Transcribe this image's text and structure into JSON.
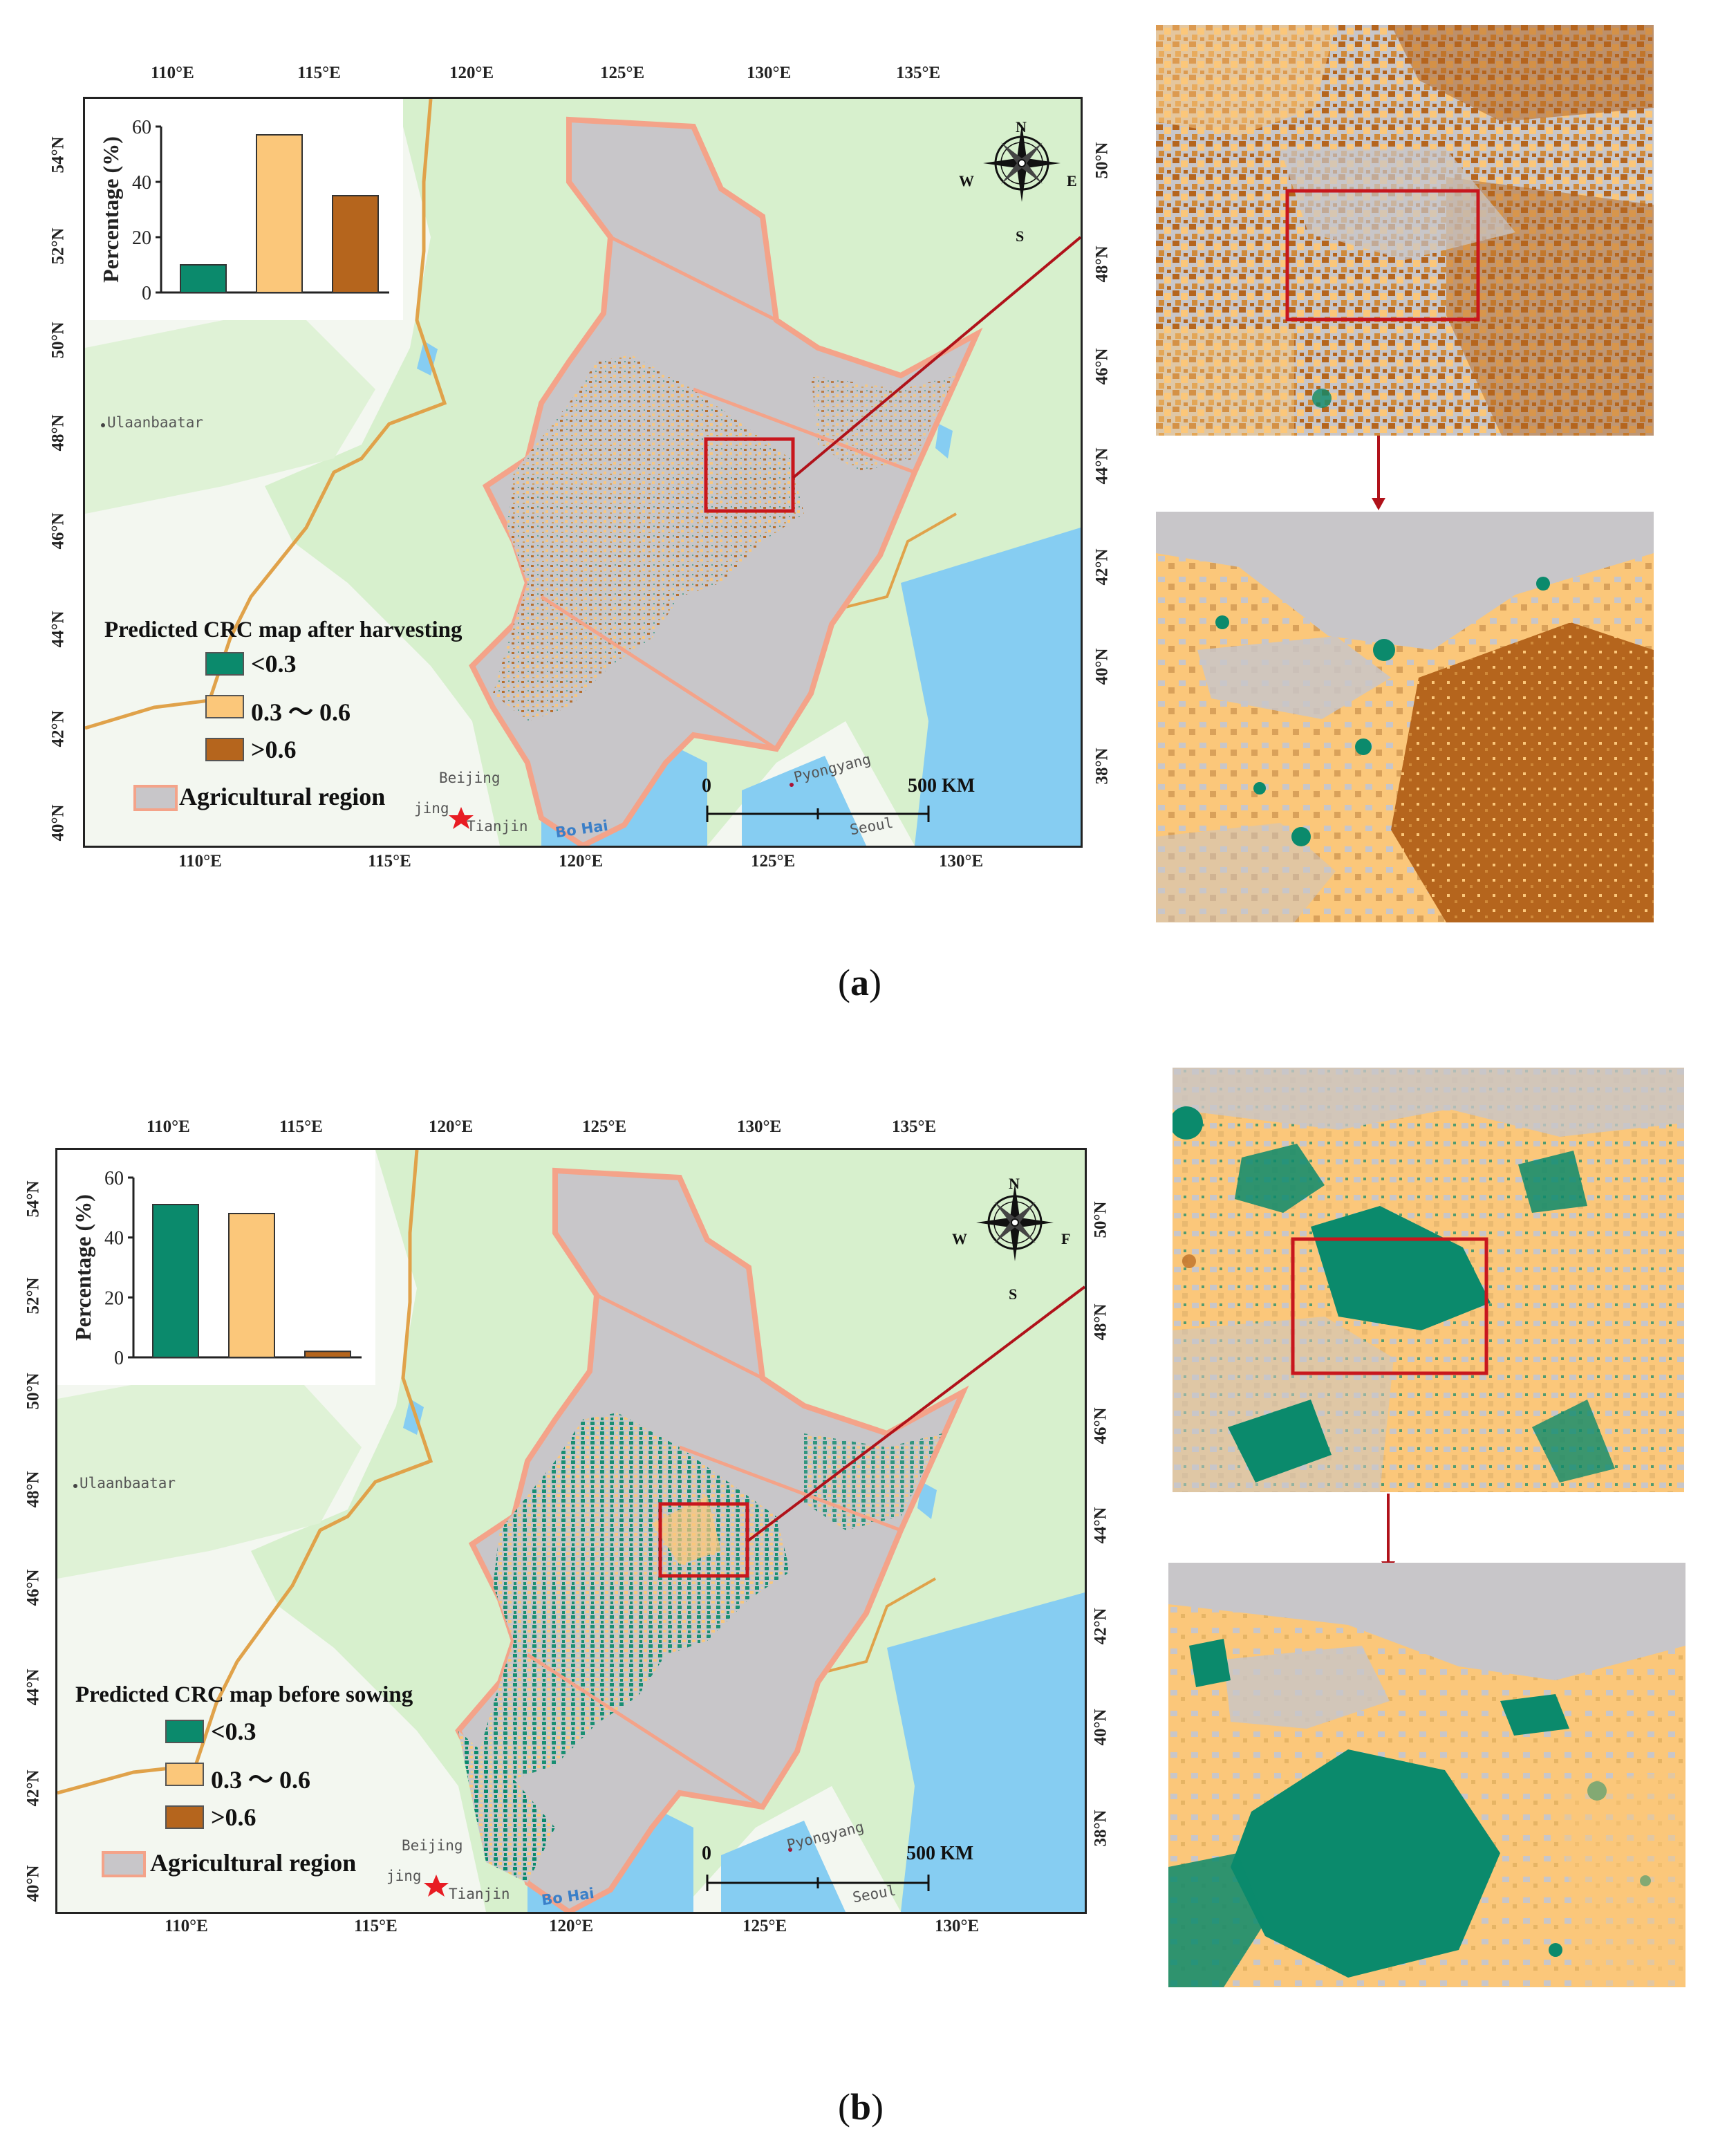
{
  "colors": {
    "low": "#0b8a6c",
    "mid": "#fbc77a",
    "high": "#b5651d",
    "agri": "#c8c6c9",
    "agri_border": "#f4a389",
    "land": "#d7f0cd",
    "water": "#86cdf2",
    "frame_red": "#c8161d",
    "border_orange": "#e0a24a"
  },
  "axes": {
    "top_lon_ticks": [
      "110°E",
      "115°E",
      "120°E",
      "125°E",
      "130°E",
      "135°E"
    ],
    "bottom_lon_ticks": [
      "110°E",
      "115°E",
      "120°E",
      "125°E",
      "130°E"
    ],
    "left_lat_ticks": [
      "54°N",
      "52°N",
      "50°N",
      "48°N",
      "46°N",
      "44°N",
      "42°N",
      "40°N"
    ],
    "right_lat_ticks": [
      "50°N",
      "48°N",
      "46°N",
      "44°N",
      "42°N",
      "40°N",
      "38°N"
    ]
  },
  "map_labels": {
    "ulaanbaatar": "Ulaanbaatar",
    "beijing": "Beijing",
    "jing": "jing",
    "tianjin": "Tianjin",
    "bo_hai": "Bo Hai",
    "pyongyang": "Pyongyang",
    "seoul": "Seoul",
    "scale_zero": "0",
    "scale_end": "500 KM"
  },
  "compass": {
    "n": "N",
    "s": "S",
    "e": "E",
    "w": "W",
    "e_b": "F"
  },
  "panels": [
    {
      "caption_open": "(",
      "caption_letter": "a",
      "caption_close": ")",
      "legend_title": "Predicted CRC map  after harvesting",
      "legend_items": [
        "<0.3",
        "0.3 ～ 0.6",
        ">0.6"
      ],
      "agri_label": "Agricultural region",
      "chart_data": {
        "type": "bar",
        "categories": [
          "<0.3",
          "0.3 ～ 0.6",
          ">0.6"
        ],
        "values": [
          10,
          57,
          35
        ],
        "ylabel": "Percentage (%)",
        "ylim": [
          0,
          60
        ],
        "yticks": [
          0,
          20,
          40,
          60
        ],
        "colors": [
          "#0b8a6c",
          "#fbc77a",
          "#b5651d"
        ]
      }
    },
    {
      "caption_open": "(",
      "caption_letter": "b",
      "caption_close": ")",
      "legend_title": "Predicted CRC map before sowing",
      "legend_items": [
        "<0.3",
        "0.3 ～ 0.6",
        ">0.6"
      ],
      "agri_label": "Agricultural region",
      "chart_data": {
        "type": "bar",
        "categories": [
          "<0.3",
          "0.3 ～ 0.6",
          ">0.6"
        ],
        "values": [
          51,
          48,
          2
        ],
        "ylabel": "Percentage (%)",
        "ylim": [
          0,
          60
        ],
        "yticks": [
          0,
          20,
          40,
          60
        ],
        "colors": [
          "#0b8a6c",
          "#fbc77a",
          "#b5651d"
        ]
      }
    }
  ]
}
